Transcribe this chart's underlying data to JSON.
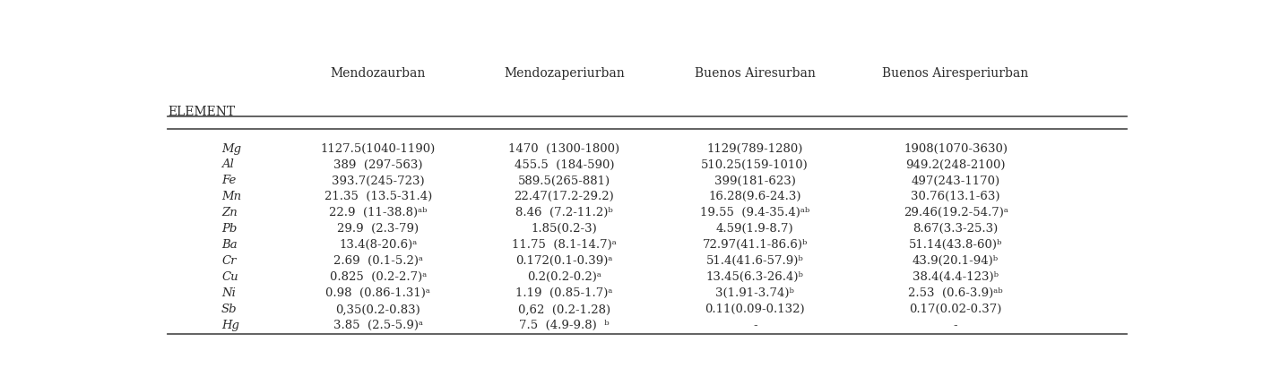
{
  "col_headers": [
    "",
    "Mendozaurban",
    "Mendozaperiurban",
    "Buenos Airesurban",
    "Buenos Airesperiurban"
  ],
  "row_label": "ELEMENT",
  "rows": [
    [
      "Mg",
      "1127.5(1040-1190)",
      "1470  (1300-1800)",
      "1129(789-1280)",
      "1908(1070-3630)"
    ],
    [
      "Al",
      "389  (297-563)",
      "455.5  (184-590)",
      "510.25(159-1010)",
      "949.2(248-2100)"
    ],
    [
      "Fe",
      "393.7(245-723)",
      "589.5(265-881)",
      "399(181-623)",
      "497(243-1170)"
    ],
    [
      "Mn",
      "21.35  (13.5-31.4)",
      "22.47(17.2-29.2)",
      "16.28(9.6-24.3)",
      "30.76(13.1-63)"
    ],
    [
      "Zn",
      "22.9  (11-38.8)ᵃᵇ",
      "8.46  (7.2-11.2)ᵇ",
      "19.55  (9.4-35.4)ᵃᵇ",
      "29.46(19.2-54.7)ᵃ"
    ],
    [
      "Pb",
      "29.9  (2.3-79)",
      "1.85(0.2-3)",
      "4.59(1.9-8.7)",
      "8.67(3.3-25.3)"
    ],
    [
      "Ba",
      "13.4(8-20.6)ᵃ",
      "11.75  (8.1-14.7)ᵃ",
      "72.97(41.1-86.6)ᵇ",
      "51.14(43.8-60)ᵇ"
    ],
    [
      "Cr",
      "2.69  (0.1-5.2)ᵃ",
      "0.172(0.1-0.39)ᵃ",
      "51.4(41.6-57.9)ᵇ",
      "43.9(20.1-94)ᵇ"
    ],
    [
      "Cu",
      "0.825  (0.2-2.7)ᵃ",
      "0.2(0.2-0.2)ᵃ",
      "13.45(6.3-26.4)ᵇ",
      "38.4(4.4-123)ᵇ"
    ],
    [
      "Ni",
      "0.98  (0.86-1.31)ᵃ",
      "1.19  (0.85-1.7)ᵃ",
      "3(1.91-3.74)ᵇ",
      "2.53  (0.6-3.9)ᵃᵇ"
    ],
    [
      "Sb",
      "0,35(0.2-0.83)",
      "0,62  (0.2-1.28)",
      "0.11(0.09-0.132)",
      "0.17(0.02-0.37)"
    ],
    [
      "Hg",
      "3.85  (2.5-5.9)ᵃ",
      "7.5  (4.9-9.8)  ᵇ",
      "-",
      "-"
    ]
  ],
  "background_color": "#ffffff",
  "text_color": "#2b2b2b",
  "header_color": "#2b2b2b",
  "line_color": "#555555",
  "font_size": 9.5,
  "header_font_size": 10
}
